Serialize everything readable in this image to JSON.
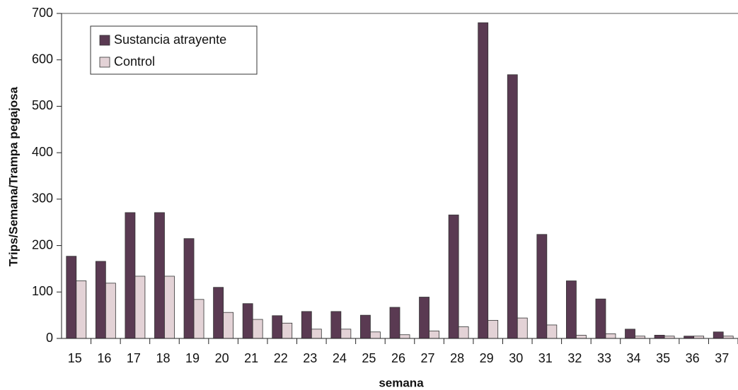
{
  "chart_data": {
    "type": "bar",
    "xlabel": "semana",
    "ylabel": "Trips/Semana/Trampa pegajosa",
    "categories": [
      "15",
      "16",
      "17",
      "18",
      "19",
      "20",
      "21",
      "22",
      "23",
      "24",
      "25",
      "26",
      "27",
      "28",
      "29",
      "30",
      "31",
      "32",
      "33",
      "34",
      "35",
      "36",
      "37"
    ],
    "series": [
      {
        "name": "Sustancia atrayente",
        "color": "#5a3a52",
        "values": [
          177,
          166,
          271,
          271,
          215,
          110,
          75,
          49,
          58,
          58,
          50,
          67,
          89,
          266,
          680,
          568,
          224,
          124,
          85,
          20,
          7,
          5,
          14
        ]
      },
      {
        "name": "Control",
        "color": "#e3d2d6",
        "values": [
          124,
          119,
          134,
          134,
          84,
          56,
          41,
          33,
          20,
          20,
          14,
          8,
          16,
          25,
          39,
          44,
          29,
          7,
          10,
          5,
          5,
          5,
          5
        ]
      }
    ],
    "ylim": [
      0,
      700
    ],
    "yticks": [
      0,
      100,
      200,
      300,
      400,
      500,
      600,
      700
    ],
    "legend": "upper left"
  }
}
